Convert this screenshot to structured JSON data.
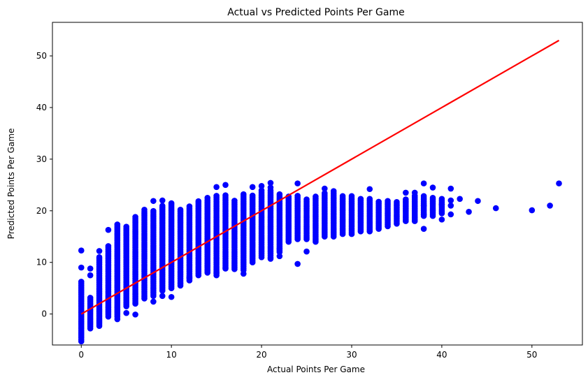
{
  "chart_data": {
    "type": "scatter",
    "title": "Actual vs Predicted Points Per Game",
    "xlabel": "Actual Points Per Game",
    "ylabel": "Predicted Points Per Game",
    "xlim": [
      -3.2,
      55.6
    ],
    "ylim": [
      -6.0,
      56.5
    ],
    "xticks": [
      0,
      10,
      20,
      30,
      40,
      50
    ],
    "yticks": [
      0,
      10,
      20,
      30,
      40,
      50
    ],
    "grid": false,
    "colors": {
      "points": "#0000ff",
      "line": "#ff0000"
    },
    "reference_line": {
      "x": [
        0,
        53
      ],
      "y": [
        0,
        53
      ]
    },
    "columns": [
      {
        "x": 0,
        "ymin": -5.3,
        "ymax": 6.5
      },
      {
        "x": 1,
        "ymin": -2.8,
        "ymax": 3.3
      },
      {
        "x": 2,
        "ymin": -2.3,
        "ymax": 11.0
      },
      {
        "x": 3,
        "ymin": -0.5,
        "ymax": 13.3
      },
      {
        "x": 4,
        "ymin": -0.5,
        "ymax": 17.5
      },
      {
        "x": 5,
        "ymin": 1.5,
        "ymax": 17.2
      },
      {
        "x": 6,
        "ymin": 2.0,
        "ymax": 18.8
      },
      {
        "x": 7,
        "ymin": 3.0,
        "ymax": 20.0
      },
      {
        "x": 8,
        "ymin": 3.5,
        "ymax": 20.0
      },
      {
        "x": 9,
        "ymin": 4.5,
        "ymax": 21.0
      },
      {
        "x": 10,
        "ymin": 5.0,
        "ymax": 21.5
      },
      {
        "x": 11,
        "ymin": 5.5,
        "ymax": 20.5
      },
      {
        "x": 12,
        "ymin": 6.5,
        "ymax": 21.0
      },
      {
        "x": 13,
        "ymin": 7.5,
        "ymax": 22.0
      },
      {
        "x": 14,
        "ymin": 8.0,
        "ymax": 22.0
      },
      {
        "x": 15,
        "ymin": 7.5,
        "ymax": 23.0
      },
      {
        "x": 16,
        "ymin": 9.0,
        "ymax": 23.3
      },
      {
        "x": 17,
        "ymin": 9.0,
        "ymax": 22.0
      },
      {
        "x": 18,
        "ymin": 8.5,
        "ymax": 23.5
      },
      {
        "x": 19,
        "ymin": 10.0,
        "ymax": 23.0
      },
      {
        "x": 20,
        "ymin": 11.0,
        "ymax": 24.0
      },
      {
        "x": 21,
        "ymin": 11.0,
        "ymax": 24.0
      },
      {
        "x": 22,
        "ymin": 12.0,
        "ymax": 23.5
      },
      {
        "x": 23,
        "ymin": 14.0,
        "ymax": 23.0
      },
      {
        "x": 24,
        "ymin": 14.5,
        "ymax": 23.0
      },
      {
        "x": 25,
        "ymin": 14.5,
        "ymax": 22.5
      },
      {
        "x": 26,
        "ymin": 14.0,
        "ymax": 23.0
      },
      {
        "x": 27,
        "ymin": 15.0,
        "ymax": 23.5
      },
      {
        "x": 28,
        "ymin": 15.0,
        "ymax": 23.5
      },
      {
        "x": 29,
        "ymin": 15.5,
        "ymax": 23.0
      },
      {
        "x": 30,
        "ymin": 15.5,
        "ymax": 23.0
      },
      {
        "x": 31,
        "ymin": 16.0,
        "ymax": 22.5
      },
      {
        "x": 32,
        "ymin": 16.0,
        "ymax": 22.5
      },
      {
        "x": 33,
        "ymin": 16.5,
        "ymax": 22.0
      },
      {
        "x": 34,
        "ymin": 17.0,
        "ymax": 22.0
      },
      {
        "x": 35,
        "ymin": 17.5,
        "ymax": 22.0
      },
      {
        "x": 36,
        "ymin": 18.0,
        "ymax": 22.5
      },
      {
        "x": 37,
        "ymin": 18.0,
        "ymax": 23.0
      },
      {
        "x": 38,
        "ymin": 19.0,
        "ymax": 23.0
      },
      {
        "x": 39,
        "ymin": 19.0,
        "ymax": 22.8
      },
      {
        "x": 40,
        "ymin": 19.5,
        "ymax": 22.5
      }
    ],
    "points": [
      {
        "x": 0,
        "y": 12.3
      },
      {
        "x": 0,
        "y": 9.0
      },
      {
        "x": 1,
        "y": 8.8
      },
      {
        "x": 1,
        "y": 7.5
      },
      {
        "x": 2,
        "y": 12.2
      },
      {
        "x": 3,
        "y": 16.3
      },
      {
        "x": 4,
        "y": -1.0
      },
      {
        "x": 5,
        "y": 0.2
      },
      {
        "x": 6,
        "y": -0.1
      },
      {
        "x": 7,
        "y": 20.2
      },
      {
        "x": 8,
        "y": 21.9
      },
      {
        "x": 8,
        "y": 2.4
      },
      {
        "x": 9,
        "y": 22.0
      },
      {
        "x": 9,
        "y": 3.5
      },
      {
        "x": 10,
        "y": 3.3
      },
      {
        "x": 12,
        "y": 7.0
      },
      {
        "x": 14,
        "y": 22.5
      },
      {
        "x": 15,
        "y": 24.6
      },
      {
        "x": 15,
        "y": 8.0
      },
      {
        "x": 16,
        "y": 25.0
      },
      {
        "x": 16,
        "y": 8.8
      },
      {
        "x": 17,
        "y": 8.7
      },
      {
        "x": 18,
        "y": 7.8
      },
      {
        "x": 19,
        "y": 24.6
      },
      {
        "x": 20,
        "y": 24.8
      },
      {
        "x": 21,
        "y": 25.4
      },
      {
        "x": 21,
        "y": 24.5
      },
      {
        "x": 21,
        "y": 10.7
      },
      {
        "x": 22,
        "y": 11.2
      },
      {
        "x": 22,
        "y": 12.7
      },
      {
        "x": 24,
        "y": 25.3
      },
      {
        "x": 24,
        "y": 9.7
      },
      {
        "x": 25,
        "y": 12.1
      },
      {
        "x": 27,
        "y": 24.3
      },
      {
        "x": 28,
        "y": 23.8
      },
      {
        "x": 32,
        "y": 24.2
      },
      {
        "x": 36,
        "y": 23.5
      },
      {
        "x": 37,
        "y": 23.5
      },
      {
        "x": 38,
        "y": 25.3
      },
      {
        "x": 38,
        "y": 16.5
      },
      {
        "x": 38,
        "y": 19.3
      },
      {
        "x": 38,
        "y": 21.0
      },
      {
        "x": 39,
        "y": 24.5
      },
      {
        "x": 40,
        "y": 18.3
      },
      {
        "x": 40,
        "y": 21.2
      },
      {
        "x": 41,
        "y": 24.3
      },
      {
        "x": 41,
        "y": 22.0
      },
      {
        "x": 41,
        "y": 21.0
      },
      {
        "x": 41,
        "y": 19.3
      },
      {
        "x": 42,
        "y": 22.3
      },
      {
        "x": 43,
        "y": 19.8
      },
      {
        "x": 44,
        "y": 21.9
      },
      {
        "x": 46,
        "y": 20.5
      },
      {
        "x": 50,
        "y": 20.1
      },
      {
        "x": 52,
        "y": 21.0
      },
      {
        "x": 53,
        "y": 25.3
      }
    ]
  }
}
